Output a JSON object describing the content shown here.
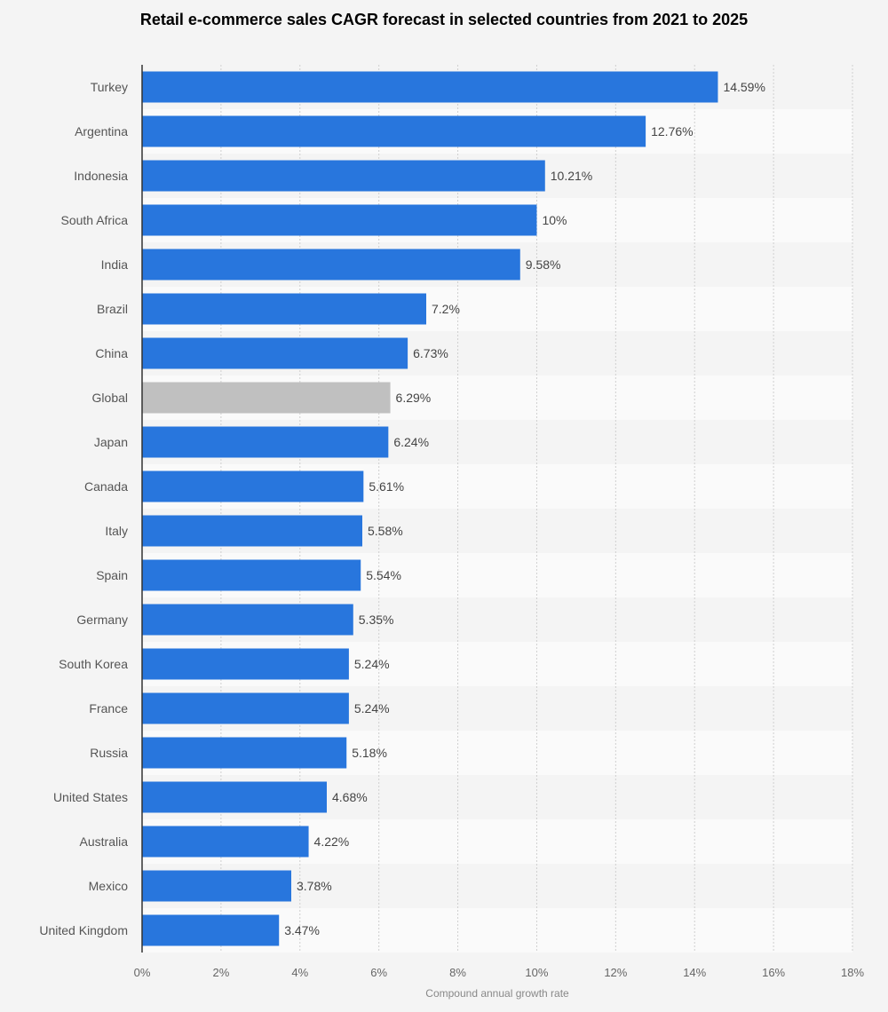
{
  "chart_data": {
    "type": "bar",
    "orientation": "horizontal",
    "title": "Retail e-commerce sales CAGR forecast in selected countries from 2021 to 2025",
    "xlabel": "Compound annual growth rate",
    "ylabel": "",
    "xlim": [
      0,
      18
    ],
    "x_ticks": [
      "0%",
      "2%",
      "4%",
      "6%",
      "8%",
      "10%",
      "12%",
      "14%",
      "16%",
      "18%"
    ],
    "grid": true,
    "categories": [
      "Turkey",
      "Argentina",
      "Indonesia",
      "South Africa",
      "India",
      "Brazil",
      "China",
      "Global",
      "Japan",
      "Canada",
      "Italy",
      "Spain",
      "Germany",
      "South Korea",
      "France",
      "Russia",
      "United States",
      "Australia",
      "Mexico",
      "United Kingdom"
    ],
    "values": [
      14.59,
      12.76,
      10.21,
      10,
      9.58,
      7.2,
      6.73,
      6.29,
      6.24,
      5.61,
      5.58,
      5.54,
      5.35,
      5.24,
      5.24,
      5.18,
      4.68,
      4.22,
      3.78,
      3.47
    ],
    "data_labels": [
      "14.59%",
      "12.76%",
      "10.21%",
      "10%",
      "9.58%",
      "7.2%",
      "6.73%",
      "6.29%",
      "6.24%",
      "5.61%",
      "5.58%",
      "5.54%",
      "5.35%",
      "5.24%",
      "5.24%",
      "5.18%",
      "4.68%",
      "4.22%",
      "3.78%",
      "3.47%"
    ],
    "colors": {
      "bar": "#2876dd",
      "highlight": "#c0c0c0",
      "highlight_category": "Global"
    }
  }
}
